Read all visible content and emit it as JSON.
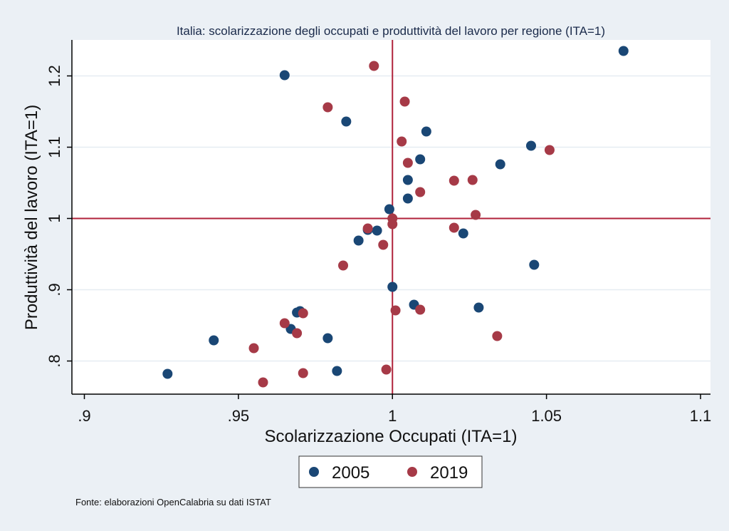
{
  "chart_data": {
    "type": "scatter",
    "title": "Italia: scolarizzazione degli occupati e produttività del lavoro per regione (ITA=1)",
    "xlabel": "Scolarizzazione  Occupati (ITA=1)",
    "ylabel": "Produttività del lavoro (ITA=1)",
    "xlim": [
      0.9,
      1.1
    ],
    "ylim": [
      0.75,
      1.25
    ],
    "x_ticks": [
      0.9,
      0.95,
      1.0,
      1.05,
      1.1
    ],
    "x_tick_labels": [
      ".9",
      ".95",
      "1",
      "1.05",
      "1.1"
    ],
    "y_ticks": [
      0.8,
      0.9,
      1.0,
      1.1,
      1.2
    ],
    "y_tick_labels": [
      ".8",
      ".9",
      "1",
      "1.1",
      "1.2"
    ],
    "reference_lines": {
      "x": 1.0,
      "y": 1.0,
      "color": "#b0223a"
    },
    "grid": "horizontal",
    "legend_position": "bottom",
    "series": [
      {
        "name": "2005",
        "color": "#1a4775",
        "points": [
          [
            1.075,
            1.235
          ],
          [
            0.965,
            1.201
          ],
          [
            0.985,
            1.136
          ],
          [
            1.011,
            1.122
          ],
          [
            1.045,
            1.102
          ],
          [
            1.009,
            1.083
          ],
          [
            1.035,
            1.076
          ],
          [
            1.005,
            1.054
          ],
          [
            1.005,
            1.028
          ],
          [
            0.999,
            1.013
          ],
          [
            0.992,
            0.984
          ],
          [
            0.995,
            0.983
          ],
          [
            1.023,
            0.979
          ],
          [
            0.989,
            0.969
          ],
          [
            1.046,
            0.935
          ],
          [
            1.0,
            0.904
          ],
          [
            1.007,
            0.879
          ],
          [
            1.028,
            0.875
          ],
          [
            0.97,
            0.87
          ],
          [
            0.969,
            0.868
          ],
          [
            0.967,
            0.845
          ],
          [
            0.979,
            0.832
          ],
          [
            0.942,
            0.829
          ],
          [
            0.982,
            0.786
          ],
          [
            0.927,
            0.782
          ]
        ]
      },
      {
        "name": "2019",
        "color": "#a63a47",
        "points": [
          [
            0.994,
            1.214
          ],
          [
            1.004,
            1.164
          ],
          [
            0.979,
            1.156
          ],
          [
            1.003,
            1.108
          ],
          [
            1.051,
            1.096
          ],
          [
            1.005,
            1.078
          ],
          [
            1.02,
            1.053
          ],
          [
            1.026,
            1.054
          ],
          [
            1.009,
            1.037
          ],
          [
            1.027,
            1.005
          ],
          [
            1.0,
            1.0
          ],
          [
            1.0,
            0.992
          ],
          [
            1.02,
            0.987
          ],
          [
            0.992,
            0.986
          ],
          [
            0.997,
            0.963
          ],
          [
            0.984,
            0.934
          ],
          [
            1.001,
            0.871
          ],
          [
            1.009,
            0.872
          ],
          [
            0.971,
            0.867
          ],
          [
            0.965,
            0.853
          ],
          [
            0.969,
            0.839
          ],
          [
            1.034,
            0.835
          ],
          [
            0.955,
            0.818
          ],
          [
            0.998,
            0.788
          ],
          [
            0.971,
            0.783
          ],
          [
            0.958,
            0.77
          ]
        ]
      }
    ]
  },
  "source_note": "Fonte: elaborazioni OpenCalabria su dati ISTAT"
}
